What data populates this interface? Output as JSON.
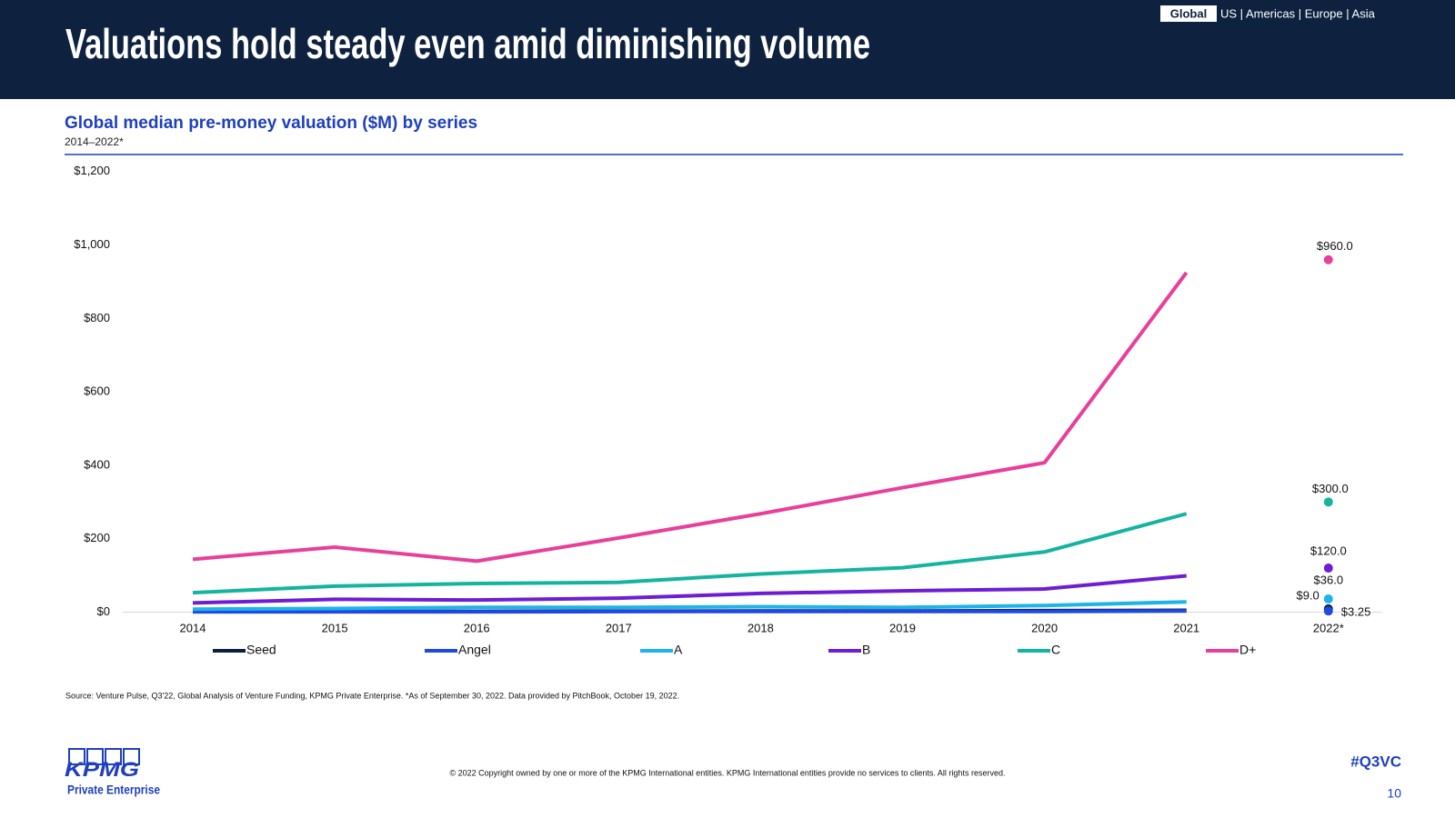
{
  "header": {
    "title": "Valuations hold steady even amid diminishing volume",
    "nav_active": "Global",
    "nav_other": "US | Americas | Europe | Asia"
  },
  "chart_data": {
    "type": "line",
    "title": "Global median pre-money valuation ($M) by series",
    "subtitle": "2014–2022*",
    "categories": [
      "2014",
      "2015",
      "2016",
      "2017",
      "2018",
      "2019",
      "2020",
      "2021",
      "2022*"
    ],
    "ylim": [
      0,
      1200
    ],
    "yticks": [
      {
        "value": 0,
        "label": "$0"
      },
      {
        "value": 200,
        "label": "$200"
      },
      {
        "value": 400,
        "label": "$400"
      },
      {
        "value": 600,
        "label": "$600"
      },
      {
        "value": 800,
        "label": "$800"
      },
      {
        "value": 1000,
        "label": "$1,000"
      },
      {
        "value": 1200,
        "label": "$1,200"
      }
    ],
    "legend": "bottom",
    "series": [
      {
        "name": "Seed",
        "color": "#0c1f3d",
        "values": [
          2,
          2,
          2,
          2.5,
          3,
          3,
          4,
          5,
          9.0
        ],
        "value_labels": [
          null,
          null,
          null,
          null,
          null,
          null,
          null,
          null,
          "$9.0"
        ]
      },
      {
        "name": "Angel",
        "color": "#1e49e2",
        "values": [
          1,
          1,
          1,
          1.5,
          2,
          2,
          2,
          3,
          3.25
        ],
        "value_labels": [
          null,
          null,
          null,
          null,
          null,
          null,
          null,
          null,
          "$3.25"
        ]
      },
      {
        "name": "A",
        "color": "#1eb4e8",
        "values": [
          8,
          10,
          13,
          13,
          15,
          13,
          18,
          28,
          36
        ],
        "value_labels": [
          null,
          null,
          null,
          null,
          null,
          null,
          null,
          null,
          "$36.0"
        ]
      },
      {
        "name": "B",
        "color": "#6d1ed4",
        "values": [
          25,
          35,
          33,
          38,
          51,
          58,
          63,
          99,
          120
        ],
        "value_labels": [
          null,
          null,
          null,
          null,
          null,
          null,
          null,
          null,
          "$120.0"
        ]
      },
      {
        "name": "C",
        "color": "#14b4a0",
        "values": [
          53,
          71,
          78,
          81,
          104,
          121,
          164,
          268,
          300
        ],
        "value_labels": [
          null,
          null,
          null,
          null,
          null,
          null,
          null,
          null,
          "$300.0"
        ]
      },
      {
        "name": "D+",
        "color": "#e8409a",
        "values": [
          144,
          177,
          139,
          202,
          268,
          339,
          407,
          925,
          960
        ],
        "value_labels": [
          null,
          null,
          null,
          null,
          null,
          null,
          null,
          null,
          "$960.0"
        ]
      }
    ]
  },
  "footer": {
    "source": "Source: Venture Pulse, Q3'22, Global Analysis of Venture Funding, KPMG Private Enterprise. *As of September 30, 2022. Data provided by PitchBook, October 19, 2022.",
    "copyright": "© 2022 Copyright owned by one or more of the KPMG International entities. KPMG International entities provide no services to clients. All rights reserved.",
    "logo": "KPMG",
    "logo_sub": "Private Enterprise",
    "hashtag": "#Q3VC",
    "page": "10"
  }
}
